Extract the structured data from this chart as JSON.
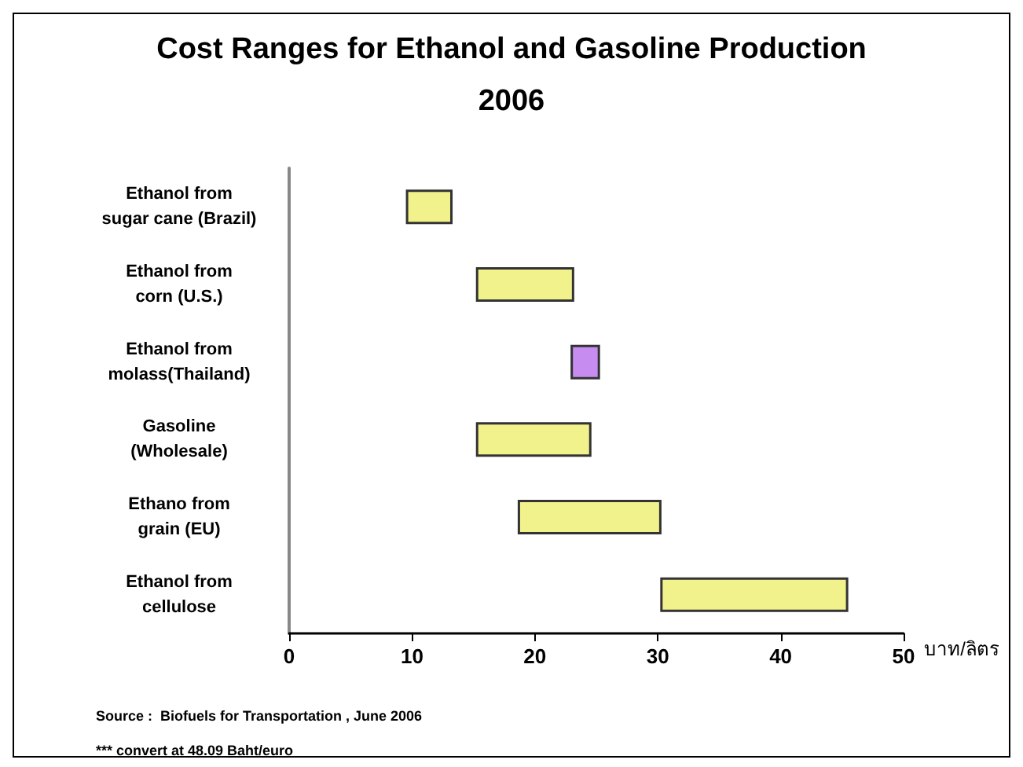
{
  "chart_data": {
    "type": "bar",
    "orientation": "horizontal",
    "title": "Cost Ranges for Ethanol and Gasoline Production",
    "subtitle": "2006",
    "categories": [
      "Ethanol from\nsugar cane (Brazil)",
      "Ethanol from\ncorn (U.S.)",
      "Ethanol from\nmolass(Thailand)",
      "Gasoline\n(Wholesale)",
      "Ethano from\ngrain (EU)",
      "Ethanol from\ncellulose"
    ],
    "base": [
      9.5,
      15.2,
      22.9,
      15.2,
      18.6,
      30.2
    ],
    "values": [
      3.8,
      8.0,
      2.4,
      9.4,
      11.7,
      15.3
    ],
    "colors": [
      "#f2f28c",
      "#f2f28c",
      "#c68cf0",
      "#f2f28c",
      "#f2f28c",
      "#f2f28c"
    ],
    "xlabel": "บาท/ลิตร",
    "xlim": [
      0,
      50
    ],
    "xticks": [
      0,
      10,
      20,
      30,
      40,
      50
    ],
    "annotations": [
      "Source :  Biofuels for Transportation , June 2006",
      "*** convert at 48.09 Baht/euro"
    ]
  }
}
